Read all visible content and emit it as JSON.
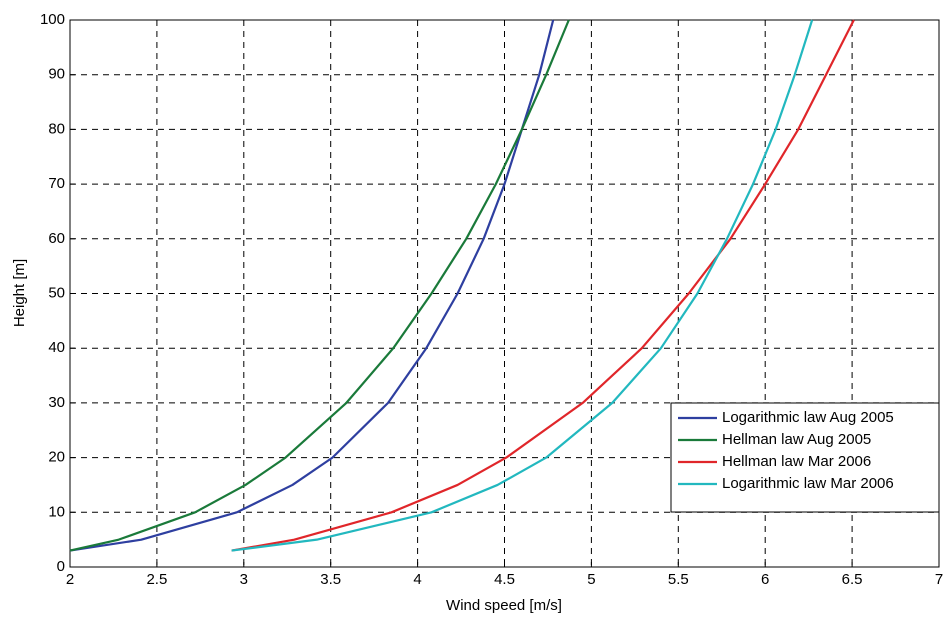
{
  "chart_data": {
    "type": "line",
    "x_label": "Wind speed [m/s]",
    "y_label": "Height [m]",
    "xlim": [
      2,
      7
    ],
    "ylim": [
      0,
      100
    ],
    "xticks": [
      2,
      2.5,
      3,
      3.5,
      4,
      4.5,
      5,
      5.5,
      6,
      6.5,
      7
    ],
    "yticks": [
      0,
      10,
      20,
      30,
      40,
      50,
      60,
      70,
      80,
      90,
      100
    ],
    "grid": true,
    "legend": "lower right",
    "series": [
      {
        "name": "Logarithmic law Aug 2005",
        "color": "#2e3fa0",
        "x": [
          2.0,
          2.41,
          2.96,
          3.28,
          3.51,
          3.83,
          4.05,
          4.23,
          4.38,
          4.5,
          4.6,
          4.7,
          4.78
        ],
        "values": [
          3,
          5,
          10,
          15,
          20,
          30,
          40,
          50,
          60,
          70,
          80,
          90,
          100
        ]
      },
      {
        "name": "Hellman law Aug 2005",
        "color": "#1a7a3a",
        "x": [
          2.0,
          2.28,
          2.72,
          3.01,
          3.24,
          3.59,
          3.86,
          4.08,
          4.28,
          4.45,
          4.6,
          4.74,
          4.87
        ],
        "values": [
          3,
          5,
          10,
          15,
          20,
          30,
          40,
          50,
          60,
          70,
          80,
          90,
          100
        ]
      },
      {
        "name": "Hellman law Mar 2006",
        "color": "#e0262a",
        "x": [
          2.93,
          3.29,
          3.85,
          4.23,
          4.51,
          4.95,
          5.29,
          5.56,
          5.8,
          6.0,
          6.19,
          6.35,
          6.51
        ],
        "values": [
          3,
          5,
          10,
          15,
          20,
          30,
          40,
          50,
          60,
          70,
          80,
          90,
          100
        ]
      },
      {
        "name": "Logarithmic law Mar 2006",
        "color": "#22b8bf",
        "x": [
          2.93,
          3.42,
          4.08,
          4.46,
          4.74,
          5.12,
          5.4,
          5.61,
          5.78,
          5.93,
          6.06,
          6.17,
          6.27
        ],
        "values": [
          3,
          5,
          10,
          15,
          20,
          30,
          40,
          50,
          60,
          70,
          80,
          90,
          100
        ]
      }
    ]
  }
}
